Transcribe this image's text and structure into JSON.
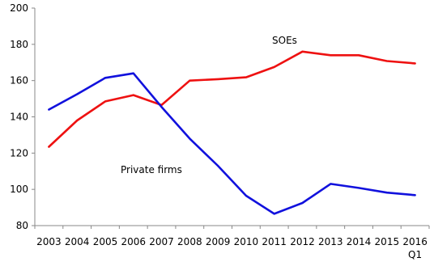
{
  "chart_data": {
    "type": "line",
    "title": "",
    "xlabel": "",
    "ylabel": "",
    "ylim": [
      80,
      200
    ],
    "yticks": [
      80,
      100,
      120,
      140,
      160,
      180,
      200
    ],
    "categories": [
      "2003",
      "2004",
      "2005",
      "2006",
      "2007",
      "2008",
      "2009",
      "2010",
      "2011",
      "2012",
      "2013",
      "2014",
      "2015",
      "2016"
    ],
    "last_tick_sublabel": "Q1",
    "grid": false,
    "series": [
      {
        "name": "SOEs",
        "color": "#ee1111",
        "values": [
          123.5,
          138,
          148.5,
          152,
          146.5,
          160,
          160.8,
          161.8,
          167.5,
          176,
          174,
          174,
          170.8,
          169.5
        ]
      },
      {
        "name": "Private firms",
        "color": "#1111dd",
        "values": [
          144,
          152.5,
          161.5,
          164,
          145.5,
          128,
          113,
          96.5,
          86.5,
          92.5,
          103,
          100.8,
          98.2,
          96.8
        ]
      }
    ]
  }
}
